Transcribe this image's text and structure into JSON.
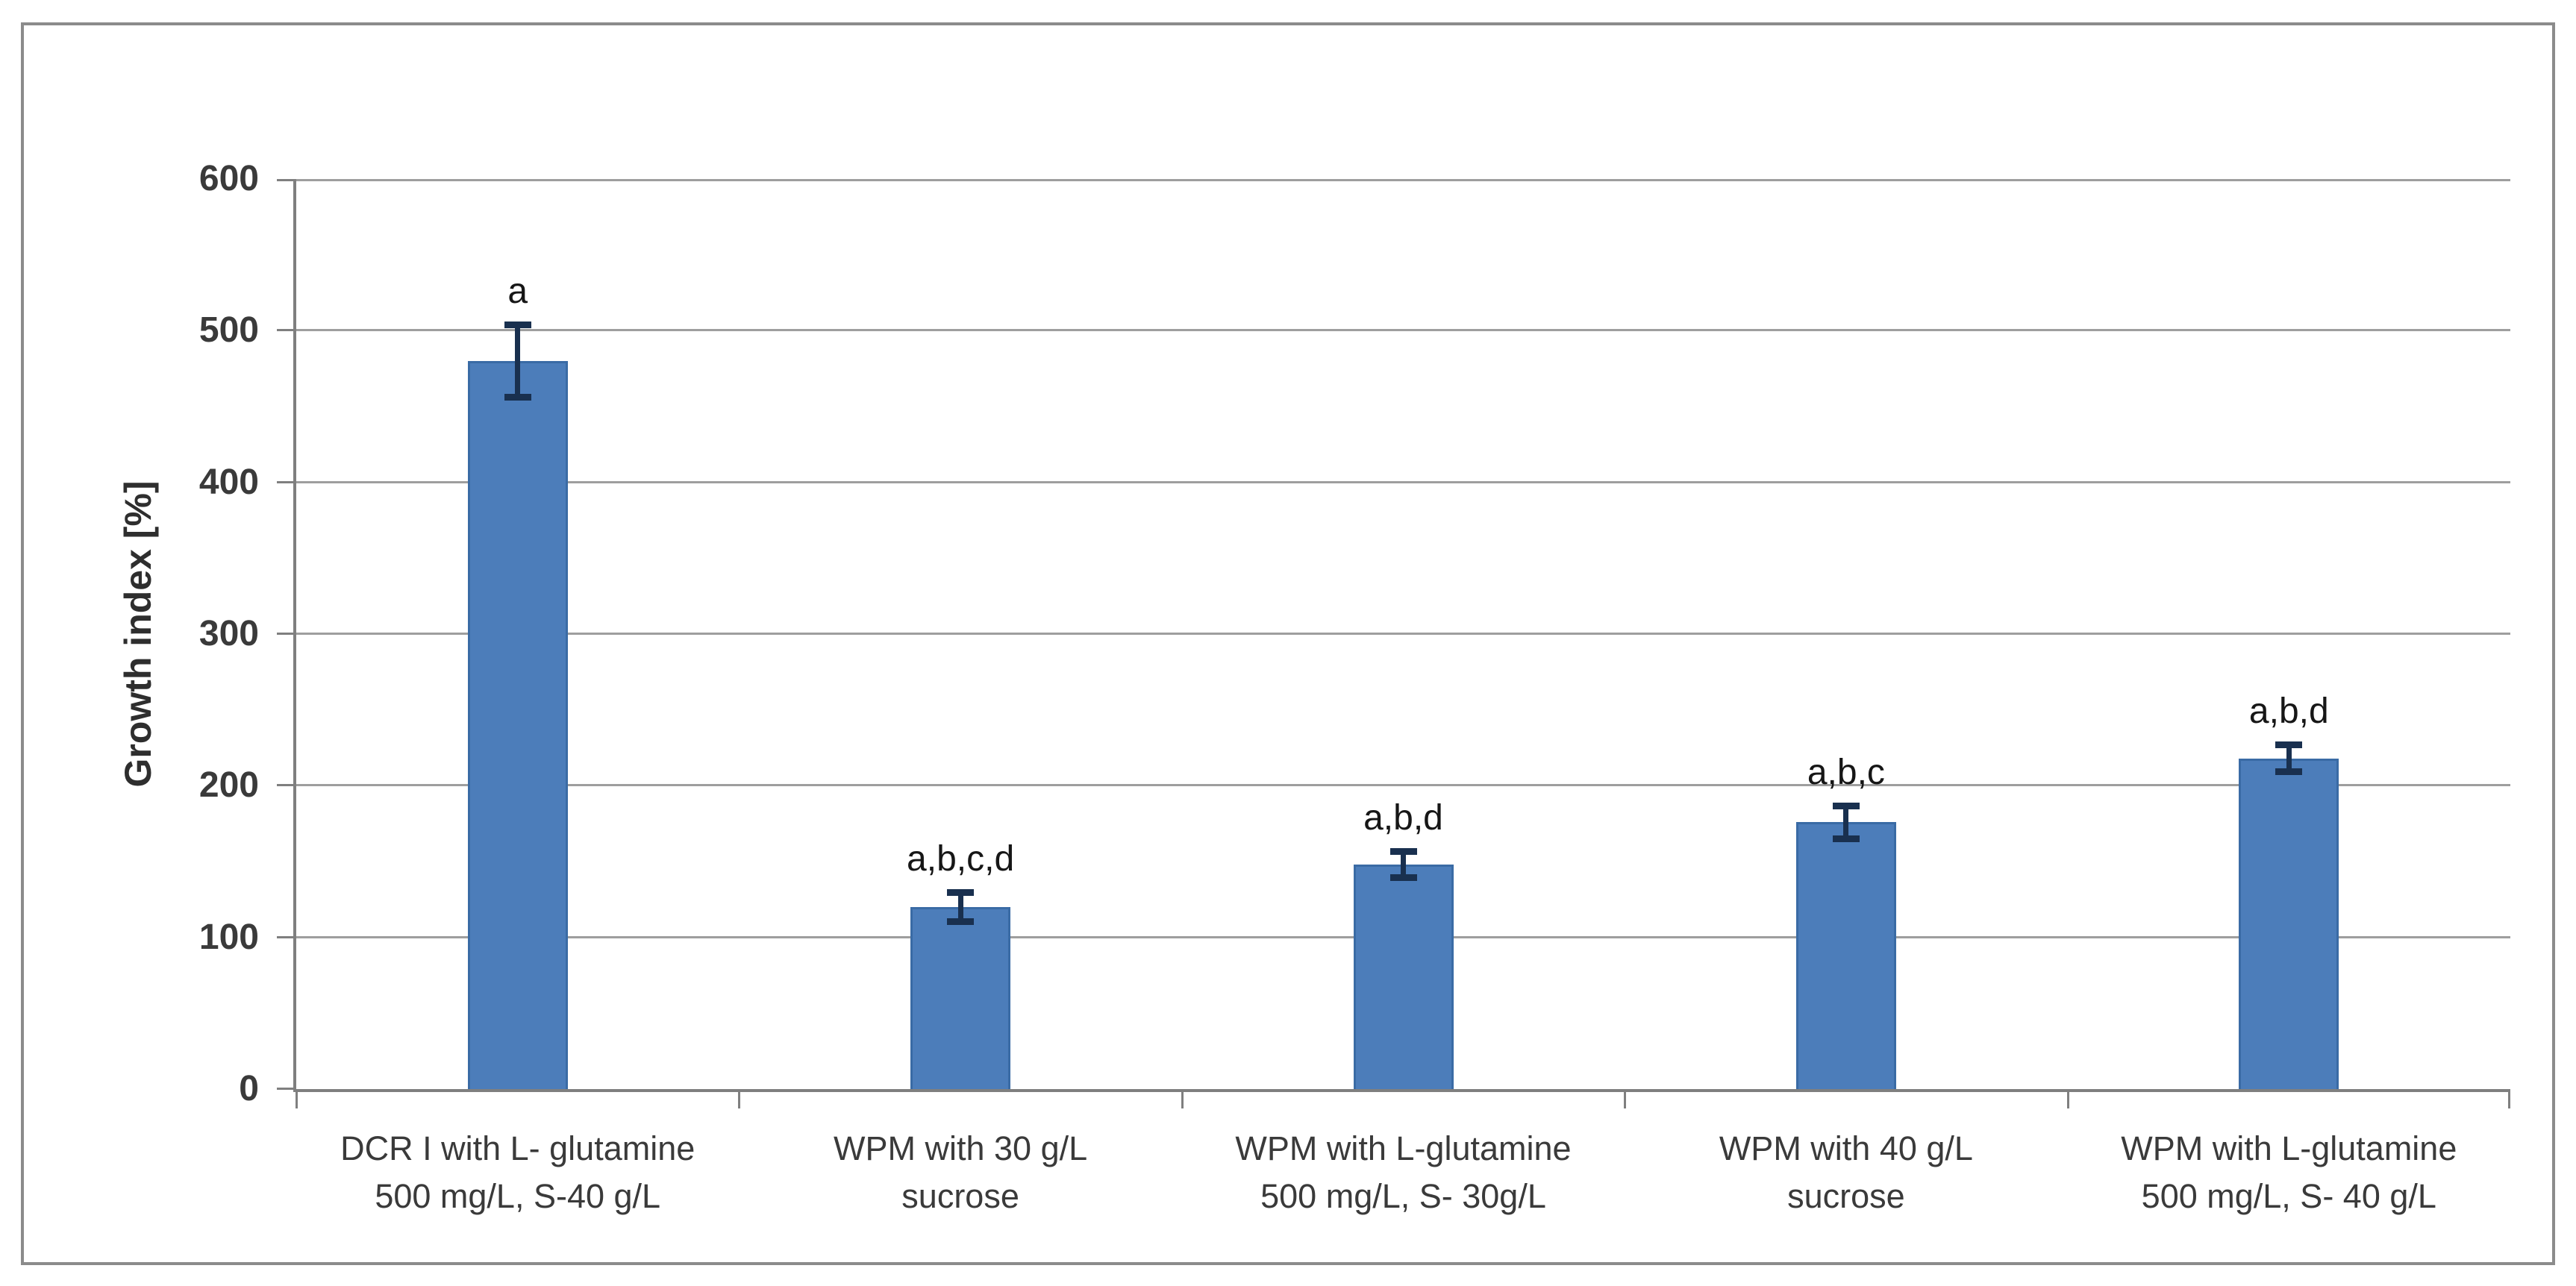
{
  "figure": {
    "background_color": "#ffffff",
    "border_color": "#8b8b8b"
  },
  "chart_data": {
    "type": "bar",
    "title": "",
    "xlabel": "",
    "ylabel": "Growth index [%]",
    "ylim": [
      0,
      600
    ],
    "yticks": [
      0,
      100,
      200,
      300,
      400,
      500,
      600
    ],
    "grid": "horizontal",
    "legend": "none",
    "categories": [
      "DCR I with L- glutamine\n500 mg/L, S-40 g/L",
      "WPM with 30 g/L\nsucrose",
      "WPM with L-glutamine\n500 mg/L, S- 30g/L",
      "WPM with 40 g/L\nsucrose",
      "WPM with L-glutamine\n500 mg/L, S- 40 g/L"
    ],
    "values": [
      480,
      120,
      148,
      176,
      218
    ],
    "error_bars": [
      24,
      10,
      9,
      11,
      9
    ],
    "annotations": [
      "a",
      "a,b,c,d",
      "a,b,d",
      "a,b,c",
      "a,b,d"
    ],
    "colors": {
      "bar_fill": "#4c7dba",
      "bar_border": "#3a6ba5",
      "error_bar": "#19304f",
      "gridline": "#9e9e9e",
      "axis": "#7f7f7f",
      "tick_label": "#3a3a3a",
      "annotation_text": "#161616"
    }
  }
}
